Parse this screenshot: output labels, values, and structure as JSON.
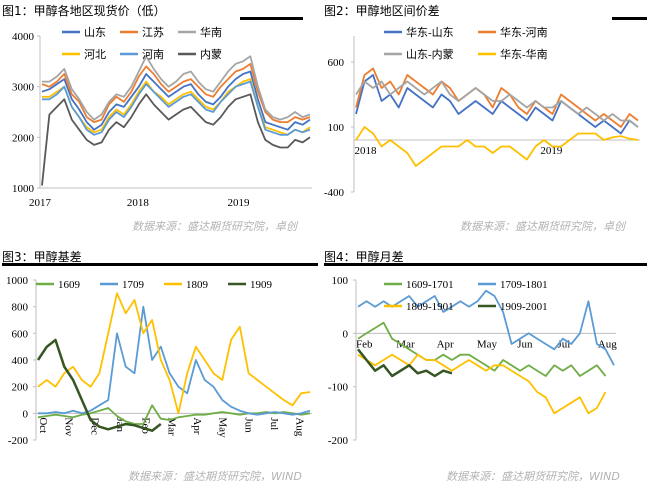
{
  "captions": {
    "c1": "图1：甲醇各地区现货价（低）",
    "c2": "图2：甲醇地区间价差",
    "c3": "图3：甲醇基差",
    "c4": "图4：甲醇月差"
  },
  "sources": {
    "s1": "数据来源：盛达期货研究院，卓创",
    "s2": "数据来源：盛达期货研究院，卓创",
    "s3": "数据来源：盛达期货研究院，WIND",
    "s4": "数据来源：盛达期货研究院，WIND"
  },
  "chart_data": [
    {
      "id": "c1",
      "type": "line",
      "title": "",
      "ylim": [
        1000,
        4000
      ],
      "yticks": [
        "1000",
        "2000",
        "3000",
        "4000"
      ],
      "xticks": [
        "2017",
        "2018",
        "2019"
      ],
      "grid": false,
      "legend": "top",
      "series": [
        {
          "name": "山东",
          "color": "#4472c4",
          "values": [
            2900,
            2950,
            3050,
            3150,
            2750,
            2550,
            2300,
            2150,
            2250,
            2500,
            2650,
            2600,
            2800,
            3000,
            3250,
            3100,
            2950,
            2800,
            2900,
            3000,
            3050,
            2850,
            2700,
            2650,
            2800,
            3000,
            3150,
            3250,
            3300,
            2750,
            2300,
            2250,
            2200,
            2150,
            2300,
            2250,
            2350
          ]
        },
        {
          "name": "江苏",
          "color": "#ed7d31",
          "values": [
            3050,
            3000,
            3100,
            3250,
            2850,
            2700,
            2400,
            2300,
            2350,
            2650,
            2800,
            2700,
            2900,
            3200,
            3400,
            3250,
            3050,
            2900,
            3000,
            3100,
            3150,
            3000,
            2850,
            2800,
            3000,
            3150,
            3300,
            3350,
            3450,
            2900,
            2500,
            2350,
            2300,
            2300,
            2400,
            2350,
            2400
          ]
        },
        {
          "name": "华南",
          "color": "#a5a5a5",
          "values": [
            3100,
            3100,
            3200,
            3350,
            2950,
            2750,
            2500,
            2350,
            2450,
            2700,
            2850,
            2800,
            3000,
            3300,
            3600,
            3350,
            3150,
            3000,
            3100,
            3250,
            3300,
            3100,
            2950,
            2900,
            3100,
            3300,
            3450,
            3500,
            3600,
            3000,
            2550,
            2400,
            2350,
            2400,
            2500,
            2400,
            2450
          ]
        },
        {
          "name": "河北",
          "color": "#ffc000",
          "values": [
            2800,
            2800,
            2900,
            3000,
            2600,
            2400,
            2200,
            2100,
            2150,
            2400,
            2550,
            2450,
            2650,
            2900,
            3100,
            2900,
            2800,
            2650,
            2750,
            2850,
            2900,
            2750,
            2600,
            2550,
            2700,
            2900,
            3000,
            3100,
            3150,
            2600,
            2200,
            2150,
            2100,
            2050,
            2150,
            2100,
            2200
          ]
        },
        {
          "name": "河南",
          "color": "#5b9bd5",
          "values": [
            2750,
            2750,
            2850,
            3000,
            2600,
            2400,
            2150,
            2050,
            2100,
            2350,
            2500,
            2400,
            2600,
            2850,
            3050,
            2900,
            2750,
            2600,
            2700,
            2800,
            2850,
            2700,
            2550,
            2500,
            2700,
            2850,
            3000,
            3050,
            3100,
            2600,
            2150,
            2100,
            2050,
            2050,
            2150,
            2100,
            2150
          ]
        },
        {
          "name": "内蒙",
          "color": "#595959",
          "values": [
            1050,
            2450,
            2600,
            2750,
            2350,
            2150,
            1950,
            1850,
            1900,
            2150,
            2300,
            2200,
            2400,
            2650,
            2850,
            2650,
            2500,
            2350,
            2450,
            2550,
            2600,
            2450,
            2300,
            2250,
            2400,
            2600,
            2750,
            2800,
            2850,
            2300,
            1950,
            1850,
            1800,
            1800,
            1950,
            1900,
            2000
          ]
        }
      ]
    },
    {
      "id": "c2",
      "type": "line",
      "title": "",
      "ylim": [
        -400,
        800
      ],
      "yticks": [
        "-400",
        "100",
        "600"
      ],
      "xticks": [
        "2018",
        "2019"
      ],
      "grid": false,
      "legend": "top",
      "series": [
        {
          "name": "华东-山东",
          "color": "#4472c4",
          "values": [
            200,
            450,
            500,
            300,
            350,
            250,
            400,
            350,
            300,
            250,
            350,
            300,
            200,
            250,
            300,
            250,
            200,
            300,
            250,
            200,
            150,
            250,
            200,
            150,
            300,
            250,
            200,
            150,
            100,
            150,
            100,
            50,
            150,
            100
          ]
        },
        {
          "name": "华东-河南",
          "color": "#ed7d31",
          "values": [
            250,
            500,
            550,
            400,
            450,
            350,
            500,
            450,
            400,
            350,
            450,
            400,
            300,
            350,
            400,
            350,
            250,
            400,
            350,
            250,
            200,
            300,
            250,
            200,
            350,
            300,
            250,
            200,
            150,
            200,
            150,
            100,
            200,
            150
          ]
        },
        {
          "name": "山东-内蒙",
          "color": "#a5a5a5",
          "values": [
            350,
            450,
            400,
            450,
            350,
            400,
            450,
            400,
            350,
            400,
            450,
            350,
            300,
            350,
            400,
            350,
            300,
            300,
            350,
            300,
            250,
            300,
            250,
            250,
            300,
            250,
            200,
            250,
            200,
            150,
            200,
            150,
            150,
            100
          ]
        },
        {
          "name": "华东-华南",
          "color": "#ffc000",
          "values": [
            0,
            100,
            50,
            -50,
            0,
            -50,
            -100,
            -200,
            -150,
            -100,
            -50,
            -50,
            -50,
            0,
            -50,
            -50,
            -100,
            -50,
            -50,
            -100,
            -150,
            -50,
            0,
            -50,
            -50,
            0,
            50,
            50,
            50,
            0,
            20,
            30,
            10,
            0
          ]
        }
      ]
    },
    {
      "id": "c3",
      "type": "line",
      "title": "",
      "ylim": [
        -200,
        1000
      ],
      "yticks": [
        "-200",
        "0",
        "200",
        "400",
        "600",
        "800",
        "1000"
      ],
      "xticks": [
        "Oct",
        "Nov",
        "Dec",
        "Jan",
        "Feb",
        "Mar",
        "Apr",
        "May",
        "Jun",
        "Jul",
        "Aug"
      ],
      "grid": false,
      "legend": "top",
      "series": [
        {
          "name": "1609",
          "color": "#70ad47",
          "values": [
            -30,
            -20,
            -10,
            -20,
            -30,
            -10,
            0,
            20,
            40,
            -20,
            -60,
            -80,
            -80,
            60,
            -40,
            -50,
            -30,
            -20,
            -10,
            -10,
            0,
            10,
            0,
            -10,
            0,
            0,
            10,
            0,
            10,
            0,
            -10,
            0
          ]
        },
        {
          "name": "1709",
          "color": "#5b9bd5",
          "values": [
            0,
            0,
            10,
            0,
            20,
            0,
            20,
            60,
            100,
            600,
            350,
            300,
            800,
            400,
            500,
            300,
            200,
            150,
            400,
            250,
            200,
            100,
            50,
            20,
            0,
            -10,
            0,
            10,
            0,
            -10,
            0,
            20
          ]
        },
        {
          "name": "1809",
          "color": "#ffc000",
          "values": [
            200,
            250,
            200,
            300,
            350,
            250,
            200,
            300,
            600,
            900,
            750,
            850,
            600,
            700,
            400,
            250,
            0,
            300,
            500,
            400,
            300,
            250,
            550,
            650,
            300,
            250,
            200,
            150,
            100,
            60,
            150,
            160
          ]
        },
        {
          "name": "1909",
          "color": "#375623",
          "values": [
            400,
            500,
            550,
            350,
            250,
            100,
            -50,
            -100,
            -120,
            -100,
            -80,
            -90,
            -110,
            -130,
            -80
          ]
        }
      ]
    },
    {
      "id": "c4",
      "type": "line",
      "title": "",
      "ylim": [
        -200,
        100
      ],
      "yticks": [
        "-200",
        "-100",
        "0",
        "100"
      ],
      "xticks": [
        "Feb",
        "Mar",
        "Apr",
        "May",
        "Jun",
        "Jul",
        "Aug"
      ],
      "grid": false,
      "legend": "top",
      "series": [
        {
          "name": "1609-1701",
          "color": "#70ad47",
          "values": [
            -10,
            0,
            10,
            20,
            -10,
            -20,
            -30,
            -40,
            -50,
            -50,
            -40,
            -50,
            -40,
            -40,
            -50,
            -60,
            -70,
            -50,
            -60,
            -70,
            -60,
            -70,
            -80,
            -60,
            -70,
            -60,
            -80,
            -70,
            -60,
            -80
          ]
        },
        {
          "name": "1709-1801",
          "color": "#5b9bd5",
          "values": [
            50,
            60,
            50,
            60,
            50,
            60,
            70,
            50,
            60,
            70,
            40,
            50,
            60,
            50,
            60,
            80,
            70,
            40,
            -20,
            -10,
            0,
            -10,
            -20,
            -30,
            -10,
            -20,
            0,
            60,
            -20,
            -30,
            -60
          ]
        },
        {
          "name": "1809-1901",
          "color": "#ffc000",
          "values": [
            -40,
            -50,
            -60,
            -50,
            -40,
            -50,
            -60,
            -40,
            -50,
            -50,
            -60,
            -70,
            -60,
            -50,
            -60,
            -70,
            -60,
            -60,
            -70,
            -80,
            -90,
            -110,
            -120,
            -150,
            -140,
            -130,
            -120,
            -150,
            -140,
            -110
          ]
        },
        {
          "name": "1909-2001",
          "color": "#375623",
          "values": [
            -30,
            -50,
            -70,
            -60,
            -80,
            -70,
            -60,
            -75,
            -70,
            -80,
            -70,
            -75
          ]
        }
      ]
    }
  ]
}
